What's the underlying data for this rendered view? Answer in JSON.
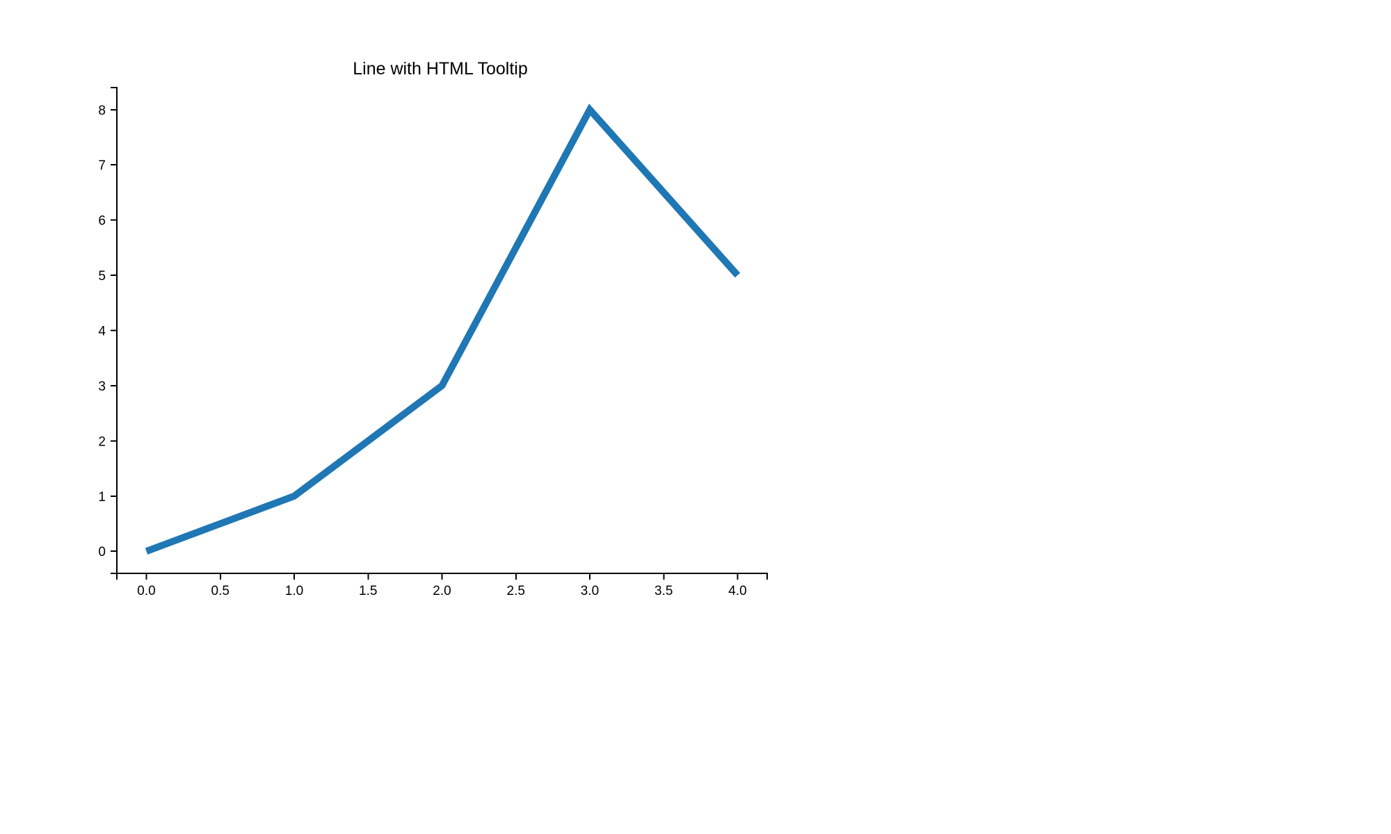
{
  "chart_data": {
    "type": "line",
    "title": "Line with HTML Tooltip",
    "xlabel": "",
    "ylabel": "",
    "x": [
      0,
      1,
      2,
      3,
      4
    ],
    "series": [
      {
        "values": [
          0,
          1,
          3,
          8,
          5
        ],
        "color": "#1f77b4"
      }
    ],
    "xlim": [
      -0.2,
      4.2
    ],
    "ylim": [
      -0.4,
      8.4
    ],
    "x_ticks": [
      "0.0",
      "0.5",
      "1.0",
      "1.5",
      "2.0",
      "2.5",
      "3.0",
      "3.5",
      "4.0"
    ],
    "x_tick_values": [
      0,
      0.5,
      1,
      1.5,
      2,
      2.5,
      3,
      3.5,
      4
    ],
    "y_ticks": [
      "0",
      "1",
      "2",
      "3",
      "4",
      "5",
      "6",
      "7",
      "8"
    ],
    "y_tick_values": [
      0,
      1,
      2,
      3,
      4,
      5,
      6,
      7,
      8
    ],
    "grid": false,
    "legend": "none"
  }
}
